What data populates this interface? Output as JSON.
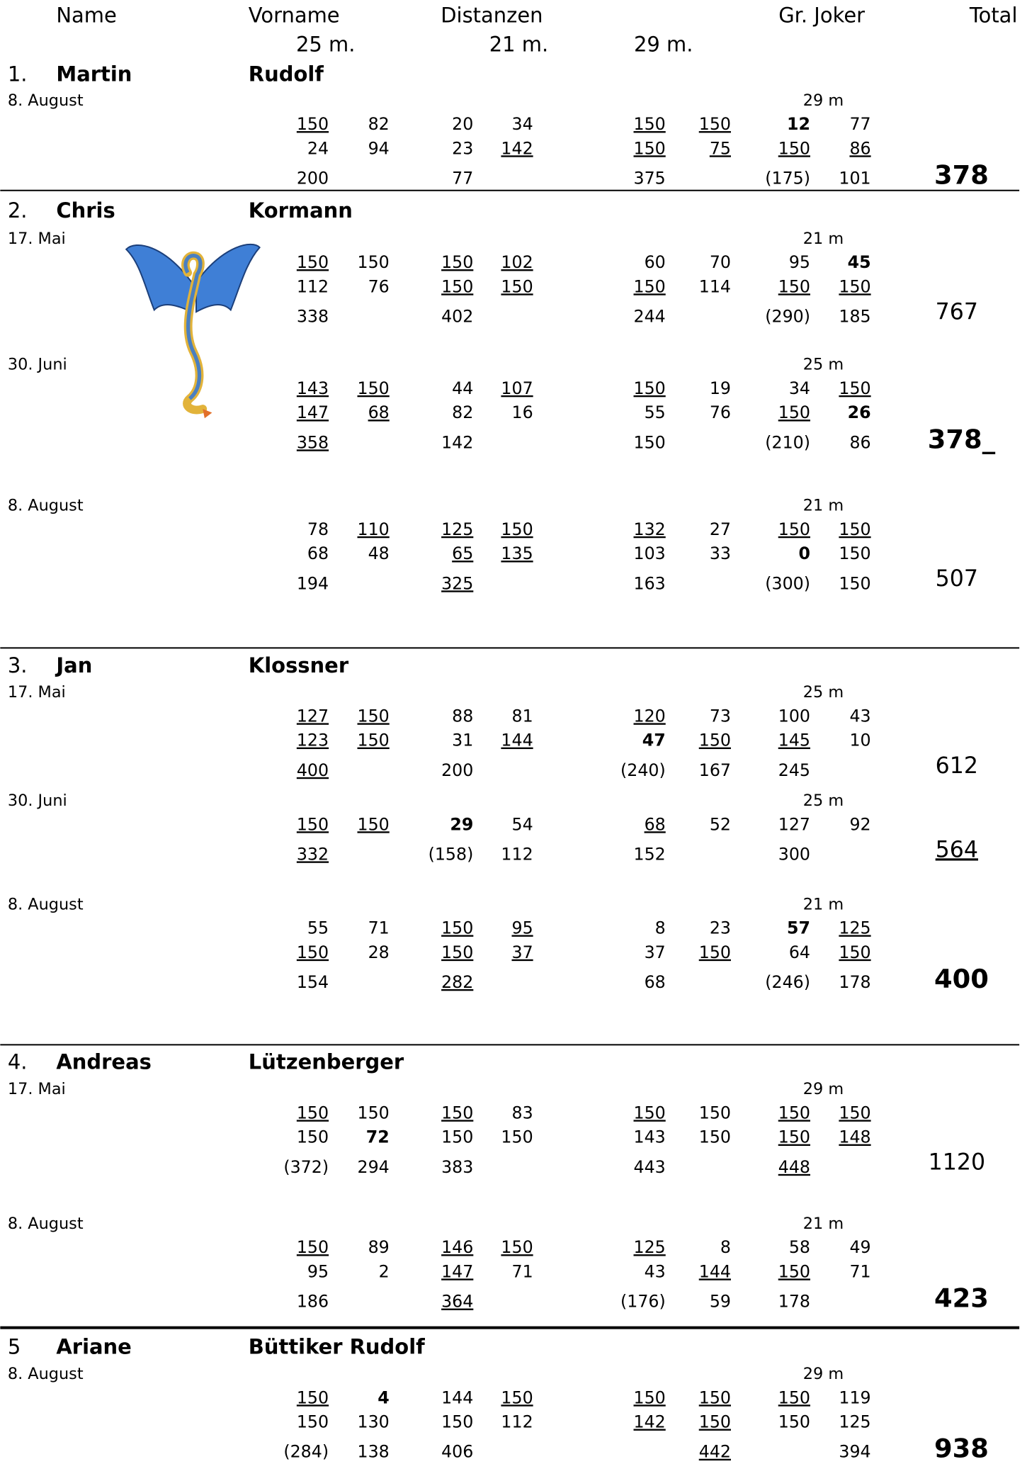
{
  "header": {
    "name": "Name",
    "vorname": "Vorname",
    "distanzen": "Distanzen",
    "joker": "Gr. Joker",
    "total": "Total",
    "distances": [
      "25 m.",
      "21 m.",
      "29 m."
    ]
  },
  "players": [
    {
      "rank": "1.",
      "first": "Martin",
      "last": "Rudolf",
      "sessions": [
        {
          "date": "8. August",
          "joker_distance": "29 m",
          "rows": [
            [
              "150",
              "82",
              "20",
              "34",
              "150",
              "150",
              "12",
              "77"
            ],
            [
              "24",
              "94",
              "23",
              "142",
              "150",
              "75",
              "150",
              "86"
            ],
            [
              "200",
              null,
              "77",
              null,
              "375",
              null,
              "(175)",
              "101"
            ]
          ],
          "underline": [
            "0.0",
            "0.4",
            "0.5",
            "1.3",
            "1.4",
            "1.5",
            "1.6",
            "1.7"
          ],
          "bold": [
            "0.6"
          ],
          "total": "378",
          "total_style": "bold"
        }
      ]
    },
    {
      "rank": "2.",
      "first": "Chris",
      "last": "Kormann",
      "sessions": [
        {
          "date": "17. Mai",
          "joker_distance": "21 m",
          "rows": [
            [
              "150",
              "150",
              "150",
              "102",
              "60",
              "70",
              "95",
              "45"
            ],
            [
              "112",
              "76",
              "150",
              "150",
              "150",
              "114",
              "150",
              "150"
            ],
            [
              "338",
              null,
              "402",
              null,
              "244",
              null,
              "(290)",
              "185"
            ]
          ],
          "underline": [
            "0.0",
            "0.2",
            "0.3",
            "1.2",
            "1.3",
            "1.4",
            "1.6",
            "1.7"
          ],
          "bold": [
            "0.7"
          ],
          "total": "767",
          "total_style": "normal"
        },
        {
          "date": "30. Juni",
          "joker_distance": "25 m",
          "rows": [
            [
              "143",
              "150",
              "44",
              "107",
              "150",
              "19",
              "34",
              "150"
            ],
            [
              "147",
              "68",
              "82",
              "16",
              "55",
              "76",
              "150",
              "26"
            ],
            [
              "358",
              null,
              "142",
              null,
              "150",
              null,
              "(210)",
              "86"
            ]
          ],
          "underline": [
            "0.0",
            "0.1",
            "0.3",
            "0.4",
            "0.7",
            "1.0",
            "1.1",
            "1.6",
            "2.0"
          ],
          "bold": [
            "1.7"
          ],
          "total": "378_",
          "total_style": "bold"
        },
        {
          "date": "8. August",
          "joker_distance": "21 m",
          "rows": [
            [
              "78",
              "110",
              "125",
              "150",
              "132",
              "27",
              "150",
              "150"
            ],
            [
              "68",
              "48",
              "65",
              "135",
              "103",
              "33",
              "0",
              "150"
            ],
            [
              "194",
              null,
              "325",
              null,
              "163",
              null,
              "(300)",
              "150"
            ]
          ],
          "underline": [
            "0.1",
            "0.2",
            "0.3",
            "0.4",
            "0.6",
            "0.7",
            "1.2",
            "1.3",
            "2.2"
          ],
          "bold": [
            "1.6"
          ],
          "total": "507",
          "total_style": "normal"
        }
      ]
    },
    {
      "rank": "3.",
      "first": "Jan",
      "last": "Klossner",
      "sessions": [
        {
          "date": "17. Mai",
          "joker_distance": "25 m",
          "rows": [
            [
              "127",
              "150",
              "88",
              "81",
              "120",
              "73",
              "100",
              "43"
            ],
            [
              "123",
              "150",
              "31",
              "144",
              "47",
              "150",
              "145",
              "10"
            ],
            [
              "400",
              null,
              "200",
              null,
              "(240)",
              "167",
              "245",
              null
            ]
          ],
          "underline": [
            "0.0",
            "0.1",
            "0.4",
            "1.0",
            "1.1",
            "1.3",
            "1.5",
            "1.6",
            "2.0"
          ],
          "bold": [
            "1.4"
          ],
          "total": "612",
          "total_style": "normal"
        },
        {
          "date": "30. Juni",
          "joker_distance": "25 m",
          "rows": [
            [
              "150",
              "150",
              "29",
              "54",
              "68",
              "52",
              "127",
              "92"
            ],
            [
              "332",
              null,
              "(158)",
              "112",
              "152",
              null,
              "300",
              null
            ]
          ],
          "underline": [
            "0.0",
            "0.1",
            "0.4",
            "1.0"
          ],
          "bold": [
            "0.2"
          ],
          "total": "564",
          "total_style": "double-underline"
        },
        {
          "date": "8. August",
          "joker_distance": "21 m",
          "rows": [
            [
              "55",
              "71",
              "150",
              "95",
              "8",
              "23",
              "57",
              "125"
            ],
            [
              "150",
              "28",
              "150",
              "37",
              "37",
              "150",
              "64",
              "150"
            ],
            [
              "154",
              null,
              "282",
              null,
              "68",
              null,
              "(246)",
              "178"
            ]
          ],
          "underline": [
            "0.2",
            "0.3",
            "0.7",
            "1.0",
            "1.2",
            "1.3",
            "1.5",
            "1.7",
            "2.2"
          ],
          "bold": [
            "0.6"
          ],
          "total": "400",
          "total_style": "bold"
        }
      ]
    },
    {
      "rank": "4.",
      "first": "Andreas",
      "last": "Lützenberger",
      "sessions": [
        {
          "date": "17. Mai",
          "joker_distance": "29 m",
          "rows": [
            [
              "150",
              "150",
              "150",
              "83",
              "150",
              "150",
              "150",
              "150"
            ],
            [
              "150",
              "72",
              "150",
              "150",
              "143",
              "150",
              "150",
              "148"
            ],
            [
              "(372)",
              "294",
              "383",
              null,
              "443",
              null,
              "448",
              null
            ]
          ],
          "underline": [
            "0.0",
            "0.2",
            "0.4",
            "0.6",
            "0.7",
            "1.6",
            "1.7",
            "2.6"
          ],
          "bold": [
            "1.1"
          ],
          "total": "1120",
          "total_style": "normal"
        },
        {
          "date": "8. August",
          "joker_distance": "21 m",
          "rows": [
            [
              "150",
              "89",
              "146",
              "150",
              "125",
              "8",
              "58",
              "49"
            ],
            [
              "95",
              "2",
              "147",
              "71",
              "43",
              "144",
              "150",
              "71"
            ],
            [
              "186",
              null,
              "364",
              null,
              "(176)",
              "59",
              "178",
              null
            ]
          ],
          "underline": [
            "0.0",
            "0.2",
            "0.3",
            "0.4",
            "1.2",
            "1.5",
            "1.6",
            "2.2"
          ],
          "bold": [],
          "total": "423",
          "total_style": "bold"
        }
      ]
    },
    {
      "rank": "5",
      "first": "Ariane",
      "last": "Büttiker Rudolf",
      "sessions": [
        {
          "date": "8. August",
          "joker_distance": "29 m",
          "rows": [
            [
              "150",
              "4",
              "144",
              "150",
              "150",
              "150",
              "150",
              "119"
            ],
            [
              "150",
              "130",
              "150",
              "112",
              "142",
              "150",
              "150",
              "125"
            ],
            [
              "(284)",
              "138",
              "406",
              null,
              null,
              "442",
              null,
              "394"
            ]
          ],
          "underline": [
            "0.0",
            "0.3",
            "0.4",
            "0.5",
            "0.6",
            "1.4",
            "1.5",
            "2.5"
          ],
          "bold": [
            "0.1"
          ],
          "total": "938",
          "total_style": "bold"
        }
      ]
    }
  ]
}
